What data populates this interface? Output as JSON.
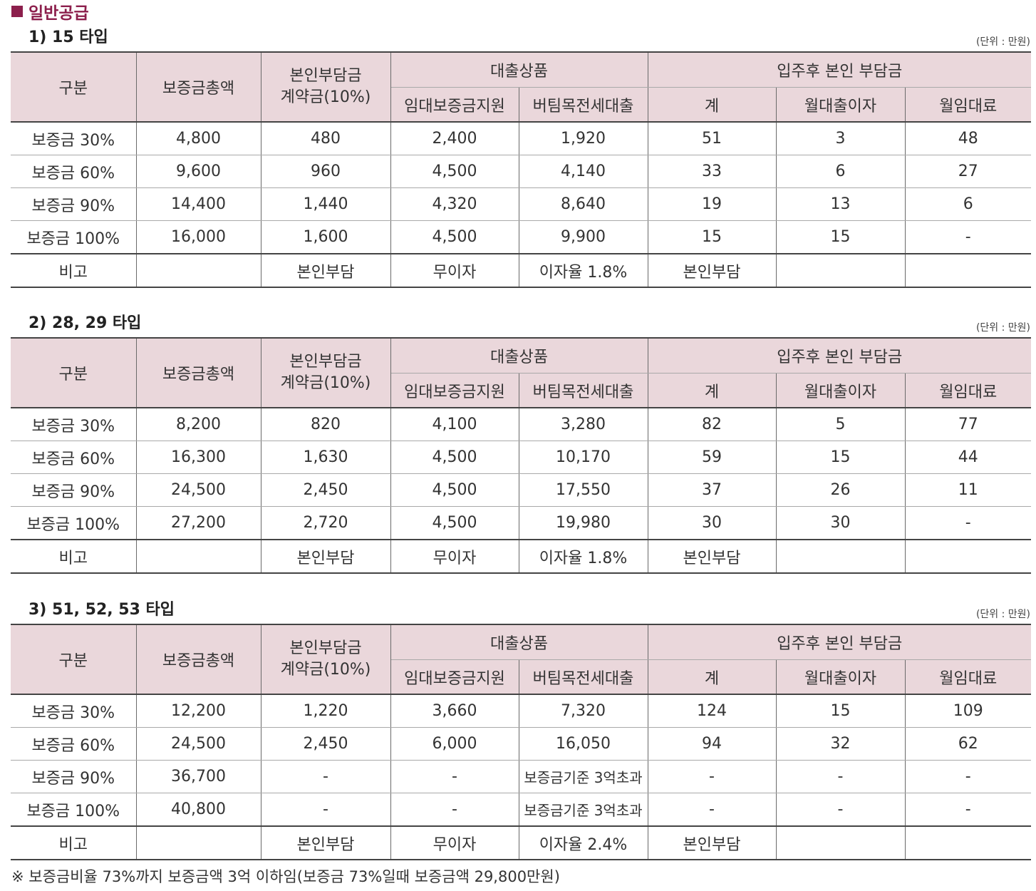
{
  "section_title": "일반공급",
  "unit_label": "(단위 : 만원)",
  "headers": {
    "category": "구분",
    "deposit_total": "보증금총액",
    "self_contract_line1": "본인부담금",
    "self_contract_line2": "계약금(10%)",
    "loan_group": "대출상품",
    "rent_support": "임대보증금지원",
    "jeonse_loan": "버팀목전세대출",
    "after_group": "입주후 본인 부담금",
    "total": "계",
    "monthly_interest": "월대출이자",
    "monthly_rent": "월임대료"
  },
  "tables": [
    {
      "title": "1) 15 타입",
      "rows": [
        [
          "보증금 30%",
          "4,800",
          "480",
          "2,400",
          "1,920",
          "51",
          "3",
          "48"
        ],
        [
          "보증금 60%",
          "9,600",
          "960",
          "4,500",
          "4,140",
          "33",
          "6",
          "27"
        ],
        [
          "보증금 90%",
          "14,400",
          "1,440",
          "4,320",
          "8,640",
          "19",
          "13",
          "6"
        ],
        [
          "보증금 100%",
          "16,000",
          "1,600",
          "4,500",
          "9,900",
          "15",
          "15",
          "-"
        ]
      ],
      "note_row": [
        "비고",
        "",
        "본인부담",
        "무이자",
        "이자율 1.8%",
        "본인부담",
        "",
        ""
      ]
    },
    {
      "title": "2) 28, 29 타입",
      "rows": [
        [
          "보증금 30%",
          "8,200",
          "820",
          "4,100",
          "3,280",
          "82",
          "5",
          "77"
        ],
        [
          "보증금 60%",
          "16,300",
          "1,630",
          "4,500",
          "10,170",
          "59",
          "15",
          "44"
        ],
        [
          "보증금 90%",
          "24,500",
          "2,450",
          "4,500",
          "17,550",
          "37",
          "26",
          "11"
        ],
        [
          "보증금 100%",
          "27,200",
          "2,720",
          "4,500",
          "19,980",
          "30",
          "30",
          "-"
        ]
      ],
      "note_row": [
        "비고",
        "",
        "본인부담",
        "무이자",
        "이자율 1.8%",
        "본인부담",
        "",
        ""
      ]
    },
    {
      "title": "3) 51, 52, 53 타입",
      "rows": [
        [
          "보증금 30%",
          "12,200",
          "1,220",
          "3,660",
          "7,320",
          "124",
          "15",
          "109"
        ],
        [
          "보증금 60%",
          "24,500",
          "2,450",
          "6,000",
          "16,050",
          "94",
          "32",
          "62"
        ],
        [
          "보증금 90%",
          "36,700",
          "-",
          "-",
          "보증금기준 3억초과",
          "-",
          "-",
          "-"
        ],
        [
          "보증금 100%",
          "40,800",
          "-",
          "-",
          "보증금기준 3억초과",
          "-",
          "-",
          "-"
        ]
      ],
      "note_row": [
        "비고",
        "",
        "본인부담",
        "무이자",
        "이자율 2.4%",
        "본인부담",
        "",
        ""
      ]
    }
  ],
  "footnote": "※ 보증금비율 73%까지 보증금액 3억 이하임(보증금 73%일때 보증금액 29,800만원)"
}
